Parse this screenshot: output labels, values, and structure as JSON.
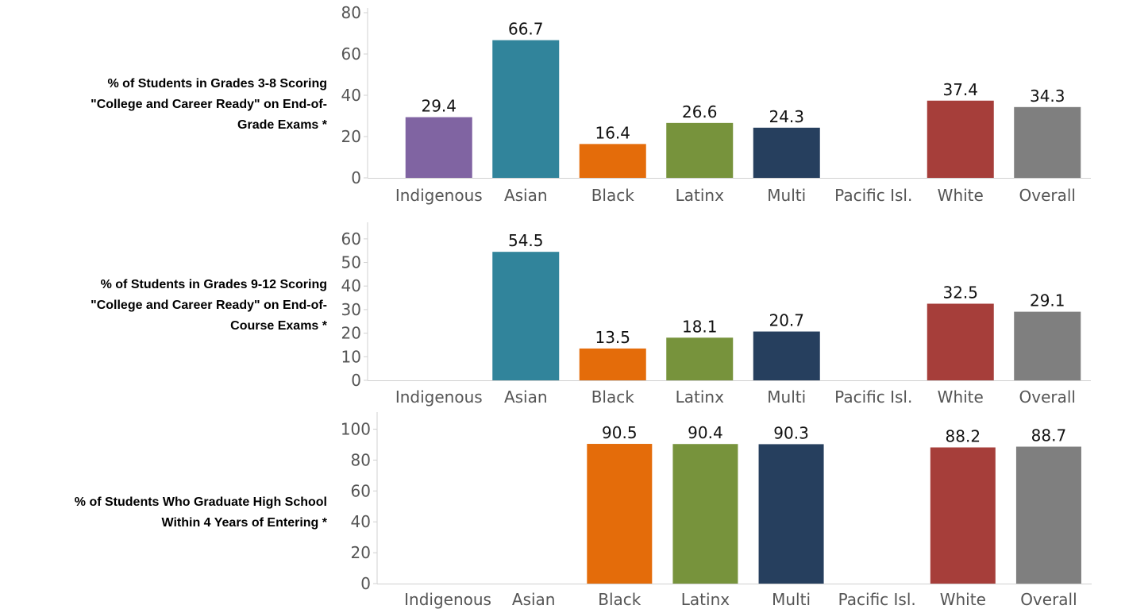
{
  "row_labels": [
    "% of Students in Grades 3-8 Scoring\n\"College and Career Ready\" on End-of-\nGrade Exams *",
    "% of Students in Grades 9-12 Scoring\n\"College and Career Ready\" on End-of-\nCourse Exams *",
    "% of Students Who Graduate High School\nWithin 4 Years of Entering *"
  ],
  "colors": {
    "Indigenous": "#8064a2",
    "Asian": "#31849b",
    "Black": "#e46c0a",
    "Latinx": "#77933c",
    "Multi": "#263f5e",
    "Pacific Isl.": "#999999",
    "White": "#a63e3a",
    "Overall": "#7f7f7f"
  },
  "chart_data": [
    {
      "type": "bar",
      "categories": [
        "Indigenous",
        "Asian",
        "Black",
        "Latinx",
        "Multi",
        "Pacific Isl.",
        "White",
        "Overall"
      ],
      "values": [
        29.4,
        66.7,
        16.4,
        26.6,
        24.3,
        null,
        37.4,
        34.3
      ],
      "yticks": [
        0,
        20,
        40,
        60,
        80
      ],
      "ylim": [
        0,
        80
      ]
    },
    {
      "type": "bar",
      "categories": [
        "Indigenous",
        "Asian",
        "Black",
        "Latinx",
        "Multi",
        "Pacific Isl.",
        "White",
        "Overall"
      ],
      "values": [
        null,
        54.5,
        13.5,
        18.1,
        20.7,
        null,
        32.5,
        29.1
      ],
      "yticks": [
        0,
        10,
        20,
        30,
        40,
        50,
        60
      ],
      "ylim": [
        0,
        65
      ]
    },
    {
      "type": "bar",
      "categories": [
        "Indigenous",
        "Asian",
        "Black",
        "Latinx",
        "Multi",
        "Pacific Isl.",
        "White",
        "Overall"
      ],
      "values": [
        null,
        null,
        90.5,
        90.4,
        90.3,
        null,
        88.2,
        88.7
      ],
      "yticks": [
        0,
        20,
        40,
        60,
        80,
        100
      ],
      "ylim": [
        0,
        108
      ]
    }
  ]
}
